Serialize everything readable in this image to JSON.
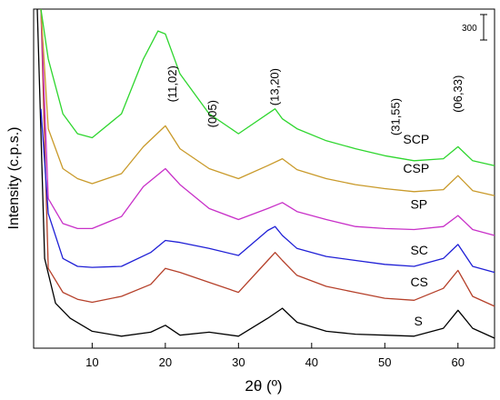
{
  "chart_data": {
    "type": "line",
    "title": "",
    "xlabel": "2θ (º)",
    "ylabel": "Intensity (c.p.s.)",
    "xlim": [
      2,
      65
    ],
    "ylim": [
      0,
      3400
    ],
    "x_ticks": [
      10,
      20,
      30,
      40,
      50,
      60
    ],
    "y_ticks_shown": false,
    "scale_bar": {
      "label": "300",
      "value": 300
    },
    "peak_annotations": [
      {
        "label": "(11,02)",
        "x": 21.5,
        "y": 2650
      },
      {
        "label": "(005)",
        "x": 27.0,
        "y": 2350
      },
      {
        "label": "(13,20)",
        "x": 35.5,
        "y": 2620
      },
      {
        "label": "(31,55)",
        "x": 52.0,
        "y": 2320
      },
      {
        "label": "(06,33)",
        "x": 60.5,
        "y": 2550
      }
    ],
    "series": [
      {
        "name": "S",
        "color": "#000000",
        "x": [
          2.5,
          3.5,
          5,
          7,
          10,
          14,
          18,
          20,
          22,
          26,
          30,
          34,
          36,
          38,
          42,
          46,
          50,
          54,
          58,
          60,
          62,
          65
        ],
        "values": [
          3400,
          900,
          450,
          300,
          170,
          120,
          160,
          230,
          130,
          160,
          120,
          300,
          400,
          260,
          170,
          140,
          130,
          120,
          200,
          380,
          200,
          100
        ]
      },
      {
        "name": "CS",
        "color": "#b5402a",
        "x": [
          3,
          4,
          6,
          8,
          10,
          14,
          18,
          20,
          22,
          26,
          30,
          34,
          35,
          36,
          38,
          42,
          46,
          50,
          54,
          58,
          60,
          62,
          65
        ],
        "values": [
          3400,
          800,
          560,
          490,
          460,
          520,
          640,
          800,
          760,
          660,
          560,
          880,
          960,
          880,
          730,
          620,
          560,
          500,
          480,
          600,
          780,
          520,
          420
        ]
      },
      {
        "name": "SC",
        "color": "#1f1fd6",
        "x": [
          3,
          4,
          6,
          8,
          10,
          14,
          18,
          20,
          22,
          26,
          30,
          34,
          35,
          36,
          38,
          42,
          46,
          50,
          54,
          58,
          60,
          62,
          65
        ],
        "values": [
          2400,
          1350,
          900,
          820,
          810,
          820,
          960,
          1080,
          1060,
          1000,
          930,
          1180,
          1220,
          1130,
          1000,
          920,
          880,
          840,
          820,
          900,
          1040,
          820,
          760
        ]
      },
      {
        "name": "SP",
        "color": "#c830c8",
        "x": [
          3,
          4,
          6,
          8,
          10,
          14,
          17,
          20,
          22,
          26,
          30,
          34,
          36,
          38,
          42,
          46,
          50,
          54,
          58,
          60,
          62,
          65
        ],
        "values": [
          3400,
          1500,
          1250,
          1200,
          1200,
          1320,
          1620,
          1800,
          1640,
          1400,
          1290,
          1400,
          1460,
          1370,
          1290,
          1220,
          1200,
          1190,
          1220,
          1330,
          1190,
          1130
        ]
      },
      {
        "name": "CSP",
        "color": "#c99a2a",
        "x": [
          3,
          4,
          6,
          8,
          10,
          14,
          17,
          20,
          22,
          26,
          30,
          34,
          36,
          38,
          42,
          46,
          50,
          54,
          58,
          60,
          62,
          65
        ],
        "values": [
          3400,
          2200,
          1800,
          1700,
          1650,
          1750,
          2020,
          2230,
          2000,
          1800,
          1700,
          1830,
          1900,
          1790,
          1700,
          1640,
          1600,
          1570,
          1590,
          1730,
          1580,
          1530
        ]
      },
      {
        "name": "SCP",
        "color": "#2ed62e",
        "x": [
          3,
          4,
          6,
          8,
          10,
          14,
          17,
          19,
          20,
          22,
          26,
          30,
          34,
          35,
          36,
          38,
          42,
          46,
          50,
          54,
          58,
          60,
          62,
          65
        ],
        "values": [
          3400,
          2900,
          2350,
          2150,
          2110,
          2350,
          2900,
          3180,
          3150,
          2750,
          2350,
          2150,
          2350,
          2400,
          2300,
          2200,
          2080,
          2000,
          1930,
          1880,
          1900,
          2020,
          1880,
          1830
        ]
      }
    ],
    "label_positions": [
      {
        "name": "S",
        "x": 54.0,
        "y": 230
      },
      {
        "name": "CS",
        "x": 53.5,
        "y": 620
      },
      {
        "name": "SC",
        "x": 53.5,
        "y": 940
      },
      {
        "name": "SP",
        "x": 53.5,
        "y": 1400
      },
      {
        "name": "CSP",
        "x": 52.5,
        "y": 1760
      },
      {
        "name": "SCP",
        "x": 52.5,
        "y": 2050
      }
    ]
  }
}
